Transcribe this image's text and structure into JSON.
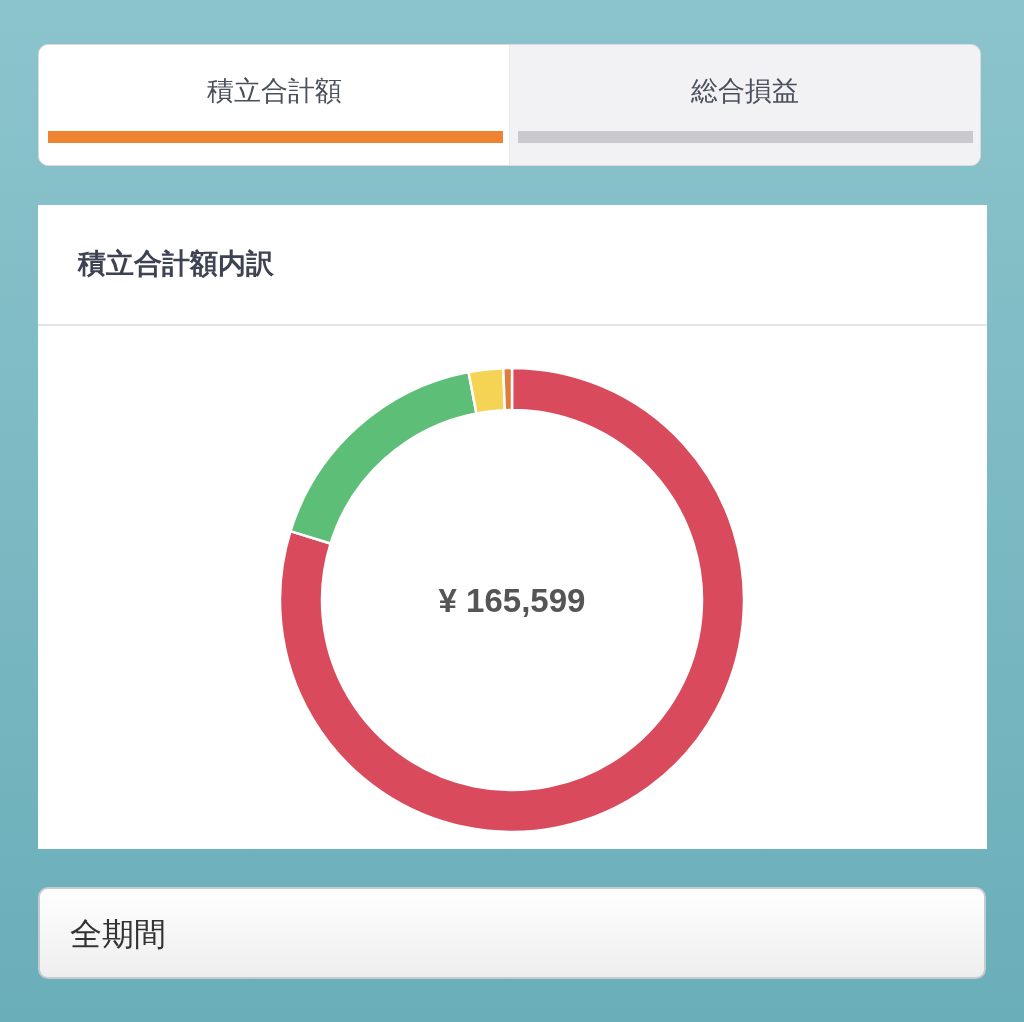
{
  "chart_data": {
    "type": "donut",
    "title": "積立合計額内訳",
    "categories": [
      null,
      null,
      null,
      null
    ],
    "values": [
      79.8,
      17.2,
      2.4,
      0.6
    ],
    "colors": [
      "#d84a5c",
      "#5dbe78",
      "#f5d455",
      "#e07b39"
    ],
    "annotations": [
      "¥ 165,599",
      "積立合計額",
      "総合損益",
      "全期間"
    ]
  }
}
